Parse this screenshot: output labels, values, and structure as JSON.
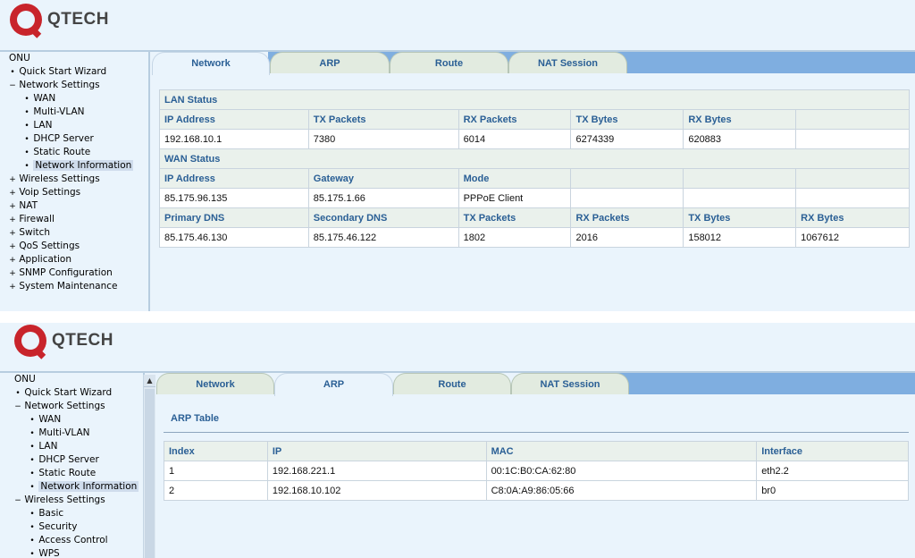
{
  "brand": {
    "name": "QTECH"
  },
  "colors": {
    "brand_red": "#c8242b",
    "tab_bar": "#7faee0",
    "header_text": "#2a5f95",
    "panel_bg": "#eaf4fc"
  },
  "panel1": {
    "nav": [
      {
        "label": "ONU",
        "level": 0,
        "mark": ""
      },
      {
        "label": "Quick Start Wizard",
        "level": 1,
        "mark": "•"
      },
      {
        "label": "Network Settings",
        "level": 1,
        "mark": "−"
      },
      {
        "label": "WAN",
        "level": 2,
        "mark": "•"
      },
      {
        "label": "Multi-VLAN",
        "level": 2,
        "mark": "•"
      },
      {
        "label": "LAN",
        "level": 2,
        "mark": "•"
      },
      {
        "label": "DHCP Server",
        "level": 2,
        "mark": "•"
      },
      {
        "label": "Static Route",
        "level": 2,
        "mark": "•"
      },
      {
        "label": "Network Information",
        "level": 2,
        "mark": "•",
        "selected": true
      },
      {
        "label": "Wireless Settings",
        "level": 1,
        "mark": "+"
      },
      {
        "label": "Voip Settings",
        "level": 1,
        "mark": "+"
      },
      {
        "label": "NAT",
        "level": 1,
        "mark": "+"
      },
      {
        "label": "Firewall",
        "level": 1,
        "mark": "+"
      },
      {
        "label": "Switch",
        "level": 1,
        "mark": "+"
      },
      {
        "label": "QoS Settings",
        "level": 1,
        "mark": "+"
      },
      {
        "label": "Application",
        "level": 1,
        "mark": "+"
      },
      {
        "label": "SNMP Configuration",
        "level": 1,
        "mark": "+"
      },
      {
        "label": "System Maintenance",
        "level": 1,
        "mark": "+"
      }
    ],
    "tabs": [
      "Network",
      "ARP",
      "Route",
      "NAT Session"
    ],
    "active_tab": "Network",
    "lan_status": {
      "title": "LAN Status",
      "headers": [
        "IP Address",
        "TX Packets",
        "RX Packets",
        "TX Bytes",
        "RX Bytes",
        ""
      ],
      "values": [
        "192.168.10.1",
        "7380",
        "6014",
        "6274339",
        "620883",
        ""
      ]
    },
    "wan_status": {
      "title": "WAN Status",
      "headers": [
        "IP Address",
        "Gateway",
        "Mode",
        "",
        "",
        ""
      ],
      "values": [
        "85.175.96.135",
        "85.175.1.66",
        "PPPoE Client",
        "",
        "",
        ""
      ],
      "headers2": [
        "Primary DNS",
        "Secondary DNS",
        "TX Packets",
        "RX Packets",
        "TX Bytes",
        "RX Bytes"
      ],
      "values2": [
        "85.175.46.130",
        "85.175.46.122",
        "1802",
        "2016",
        "158012",
        "1067612"
      ]
    }
  },
  "panel2": {
    "nav": [
      {
        "label": "ONU",
        "level": 0,
        "mark": ""
      },
      {
        "label": "Quick Start Wizard",
        "level": 1,
        "mark": "•"
      },
      {
        "label": "Network Settings",
        "level": 1,
        "mark": "−"
      },
      {
        "label": "WAN",
        "level": 2,
        "mark": "•"
      },
      {
        "label": "Multi-VLAN",
        "level": 2,
        "mark": "•"
      },
      {
        "label": "LAN",
        "level": 2,
        "mark": "•"
      },
      {
        "label": "DHCP Server",
        "level": 2,
        "mark": "•"
      },
      {
        "label": "Static Route",
        "level": 2,
        "mark": "•"
      },
      {
        "label": "Network Information",
        "level": 2,
        "mark": "•",
        "selected": true
      },
      {
        "label": "Wireless Settings",
        "level": 1,
        "mark": "−"
      },
      {
        "label": "Basic",
        "level": 2,
        "mark": "•"
      },
      {
        "label": "Security",
        "level": 2,
        "mark": "•"
      },
      {
        "label": "Access Control",
        "level": 2,
        "mark": "•"
      },
      {
        "label": "WPS",
        "level": 2,
        "mark": "•"
      }
    ],
    "tabs": [
      "Network",
      "ARP",
      "Route",
      "NAT Session"
    ],
    "active_tab": "ARP",
    "arp": {
      "title": "ARP Table",
      "headers": [
        "Index",
        "IP",
        "MAC",
        "Interface"
      ],
      "rows": [
        [
          "1",
          "192.168.221.1",
          "00:1C:B0:CA:62:80",
          "eth2.2"
        ],
        [
          "2",
          "192.168.10.102",
          "C8:0A:A9:86:05:66",
          "br0"
        ]
      ]
    }
  }
}
